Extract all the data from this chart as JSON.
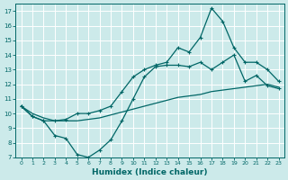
{
  "bg_color": "#cceaea",
  "grid_color": "#b0d8d8",
  "line_color": "#006666",
  "xlabel": "Humidex (Indice chaleur)",
  "xlim": [
    -0.5,
    23.5
  ],
  "ylim": [
    7,
    17.5
  ],
  "xticks": [
    0,
    1,
    2,
    3,
    4,
    5,
    6,
    7,
    8,
    9,
    10,
    11,
    12,
    13,
    14,
    15,
    16,
    17,
    18,
    19,
    20,
    21,
    22,
    23
  ],
  "yticks": [
    7,
    8,
    9,
    10,
    11,
    12,
    13,
    14,
    15,
    16,
    17
  ],
  "s1_x": [
    0,
    1,
    2,
    3,
    4,
    5,
    6,
    7,
    8,
    9,
    10,
    11,
    12,
    13,
    14,
    15,
    16,
    17,
    18,
    19,
    20,
    21,
    22,
    23
  ],
  "s1_y": [
    10.5,
    10.0,
    9.7,
    9.5,
    9.5,
    9.5,
    9.6,
    9.7,
    9.9,
    10.1,
    10.3,
    10.5,
    10.7,
    10.9,
    11.1,
    11.2,
    11.3,
    11.5,
    11.6,
    11.7,
    11.8,
    11.9,
    12.0,
    11.8
  ],
  "s2_x": [
    0,
    1,
    2,
    3,
    4,
    5,
    6,
    7,
    8,
    9,
    10,
    11,
    12,
    13,
    14,
    15,
    16,
    17,
    18,
    19,
    20,
    21,
    22,
    23
  ],
  "s2_y": [
    10.5,
    9.8,
    9.5,
    8.5,
    8.3,
    7.2,
    7.0,
    7.5,
    8.2,
    9.5,
    11.0,
    12.5,
    13.2,
    13.3,
    13.3,
    13.2,
    13.5,
    13.0,
    13.5,
    14.0,
    12.2,
    12.6,
    11.9,
    11.7
  ],
  "s3_x": [
    0,
    1,
    2,
    3,
    4,
    5,
    6,
    7,
    8,
    9,
    10,
    11,
    12,
    13,
    14,
    15,
    16,
    17,
    18,
    19,
    20,
    21,
    22,
    23
  ],
  "s3_y": [
    10.5,
    9.8,
    9.5,
    9.5,
    9.6,
    10.0,
    10.0,
    10.2,
    10.5,
    11.5,
    12.5,
    13.0,
    13.3,
    13.5,
    14.5,
    14.2,
    15.2,
    17.2,
    16.3,
    14.5,
    13.5,
    13.5,
    13.0,
    12.2
  ]
}
